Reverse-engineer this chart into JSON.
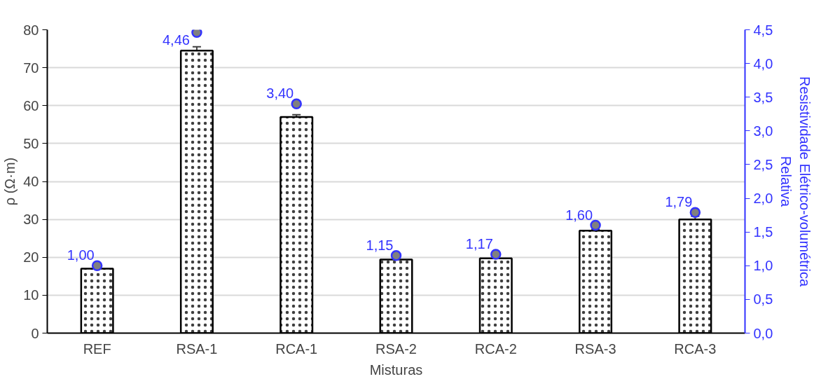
{
  "chart_data": {
    "type": "bar",
    "xlabel": "Misturas",
    "ylabel": "ρ (Ω·m)",
    "y2label": "Resistividade Elétrico-volumétrica\nRelativa",
    "categories": [
      "REF",
      "RSA-1",
      "RCA-1",
      "RSA-2",
      "RCA-2",
      "RSA-3",
      "RCA-3"
    ],
    "series": [
      {
        "color": "#ffffff",
        "values": [
          17.0,
          74.5,
          57.0,
          19.4,
          19.7,
          27.0,
          30.0
        ],
        "errors": [
          0.3,
          1.0,
          0.6,
          0.6,
          0.3,
          0.4,
          0.8
        ]
      },
      {
        "type": "scatter",
        "axis": "y2",
        "color": "#808080",
        "values": [
          1.0,
          4.46,
          3.4,
          1.15,
          1.17,
          1.6,
          1.79
        ],
        "value_labels": [
          "1,00",
          "4,46",
          "3,40",
          "1,15",
          "1,17",
          "1,60",
          "1,79"
        ]
      }
    ],
    "ylim": [
      0,
      80
    ],
    "yticks": [
      0,
      10,
      20,
      30,
      40,
      50,
      60,
      70,
      80
    ],
    "y2lim": [
      0,
      4.5
    ],
    "y2ticks": [
      {
        "value": 0,
        "label": "0,0"
      },
      {
        "value": 0.5,
        "label": "0,5"
      },
      {
        "value": 1,
        "label": "1,0"
      },
      {
        "value": 1.5,
        "label": "1,5"
      },
      {
        "value": 2,
        "label": "2,0"
      },
      {
        "value": 2.5,
        "label": "2,5"
      },
      {
        "value": 3,
        "label": "3,0"
      },
      {
        "value": 3.5,
        "label": "3,5"
      },
      {
        "value": 4,
        "label": "4,0"
      },
      {
        "value": 4.5,
        "label": "4,5"
      }
    ],
    "grid": "y",
    "marker": "circle"
  }
}
